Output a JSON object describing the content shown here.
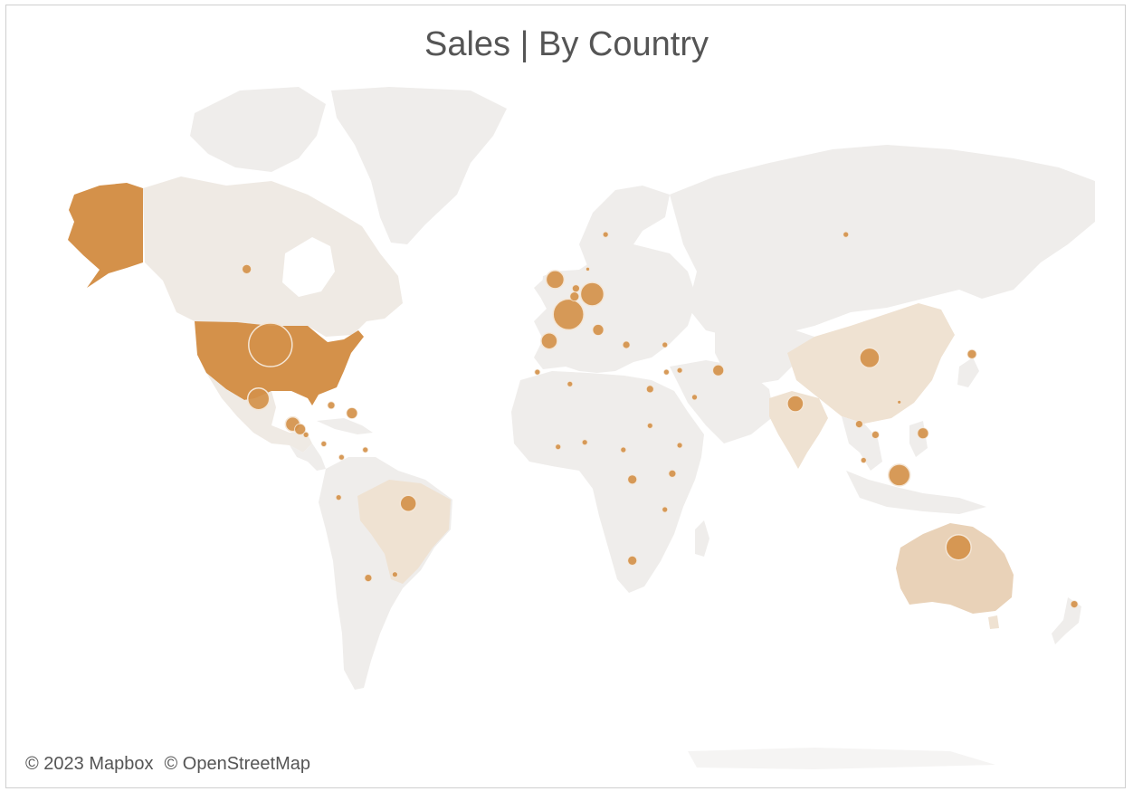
{
  "title": "Sales | By Country",
  "attribution": {
    "mapbox": "© 2023 Mapbox",
    "osm": "© OpenStreetMap"
  },
  "colors": {
    "land": "#efedeb",
    "highlight_strong": "#d4914a",
    "highlight_light": "#ead5bd",
    "highlight_mid": "#e4c5a2",
    "bubble": "#d4914a",
    "bubble_stroke": "#f4e6d6"
  },
  "legend": [],
  "chart_data": {
    "type": "map",
    "projection": "web-mercator",
    "filled_countries": [
      {
        "region": "United States",
        "shade": "strong"
      },
      {
        "region": "Canada",
        "shade": "light"
      },
      {
        "region": "Mexico",
        "shade": "light"
      },
      {
        "region": "Brazil",
        "shade": "light"
      },
      {
        "region": "China",
        "shade": "light"
      },
      {
        "region": "India",
        "shade": "light"
      },
      {
        "region": "Australia",
        "shade": "mid"
      }
    ],
    "bubbles": [
      {
        "lon": -98.0,
        "lat": 39.0,
        "size": 24
      },
      {
        "lon": -106.0,
        "lat": 56.0,
        "size": 5
      },
      {
        "lon": -102.0,
        "lat": 23.5,
        "size": 12
      },
      {
        "lon": -90.5,
        "lat": 15.5,
        "size": 8
      },
      {
        "lon": -88.0,
        "lat": 13.8,
        "size": 6
      },
      {
        "lon": -86.0,
        "lat": 12.0,
        "size": 3
      },
      {
        "lon": -77.5,
        "lat": 21.5,
        "size": 4
      },
      {
        "lon": -70.5,
        "lat": 19.0,
        "size": 6
      },
      {
        "lon": -80.0,
        "lat": 9.0,
        "size": 3
      },
      {
        "lon": -74.0,
        "lat": 4.5,
        "size": 3
      },
      {
        "lon": -66.0,
        "lat": 7.0,
        "size": 3
      },
      {
        "lon": -75.0,
        "lat": -9.0,
        "size": 3
      },
      {
        "lon": -51.5,
        "lat": -11.0,
        "size": 9
      },
      {
        "lon": -65.0,
        "lat": -34.0,
        "size": 4
      },
      {
        "lon": -56.0,
        "lat": -33.0,
        "size": 3
      },
      {
        "lon": -2.0,
        "lat": 54.0,
        "size": 10
      },
      {
        "lon": 2.5,
        "lat": 46.5,
        "size": 17
      },
      {
        "lon": -4.0,
        "lat": 40.0,
        "size": 9
      },
      {
        "lon": 10.5,
        "lat": 51.0,
        "size": 13
      },
      {
        "lon": 5.0,
        "lat": 52.2,
        "size": 4
      },
      {
        "lon": 4.5,
        "lat": 50.5,
        "size": 5
      },
      {
        "lon": 12.5,
        "lat": 42.8,
        "size": 6
      },
      {
        "lon": 15.0,
        "lat": 62.0,
        "size": 3
      },
      {
        "lon": 9.0,
        "lat": 56.0,
        "size": 2
      },
      {
        "lon": 22.0,
        "lat": 39.0,
        "size": 4
      },
      {
        "lon": -8.0,
        "lat": 31.5,
        "size": 3
      },
      {
        "lon": 3.0,
        "lat": 28.0,
        "size": 3
      },
      {
        "lon": 30.0,
        "lat": 26.5,
        "size": 4
      },
      {
        "lon": 35.5,
        "lat": 31.5,
        "size": 3
      },
      {
        "lon": 40.0,
        "lat": 32.0,
        "size": 3
      },
      {
        "lon": 45.0,
        "lat": 24.0,
        "size": 3
      },
      {
        "lon": 53.0,
        "lat": 32.0,
        "size": 6
      },
      {
        "lon": 35.0,
        "lat": 39.0,
        "size": 3
      },
      {
        "lon": 30.0,
        "lat": 15.0,
        "size": 3
      },
      {
        "lon": 8.0,
        "lat": 9.5,
        "size": 3
      },
      {
        "lon": -1.0,
        "lat": 8.0,
        "size": 3
      },
      {
        "lon": 21.0,
        "lat": 7.0,
        "size": 3
      },
      {
        "lon": 24.0,
        "lat": -3.0,
        "size": 5
      },
      {
        "lon": 37.5,
        "lat": -1.0,
        "size": 4
      },
      {
        "lon": 40.0,
        "lat": 8.5,
        "size": 3
      },
      {
        "lon": 35.0,
        "lat": -13.0,
        "size": 3
      },
      {
        "lon": 24.0,
        "lat": -29.0,
        "size": 5
      },
      {
        "lon": 96.0,
        "lat": 62.0,
        "size": 3
      },
      {
        "lon": 104.0,
        "lat": 35.5,
        "size": 11
      },
      {
        "lon": 79.0,
        "lat": 22.0,
        "size": 9
      },
      {
        "lon": 138.5,
        "lat": 36.5,
        "size": 5
      },
      {
        "lon": 100.5,
        "lat": 15.5,
        "size": 4
      },
      {
        "lon": 106.0,
        "lat": 12.0,
        "size": 4
      },
      {
        "lon": 122.0,
        "lat": 12.5,
        "size": 6
      },
      {
        "lon": 114.0,
        "lat": -1.5,
        "size": 12
      },
      {
        "lon": 102.0,
        "lat": 3.5,
        "size": 3
      },
      {
        "lon": 134.0,
        "lat": -25.0,
        "size": 14
      },
      {
        "lon": 173.0,
        "lat": -41.0,
        "size": 4
      },
      {
        "lon": 114.0,
        "lat": 22.5,
        "size": 2
      }
    ]
  }
}
